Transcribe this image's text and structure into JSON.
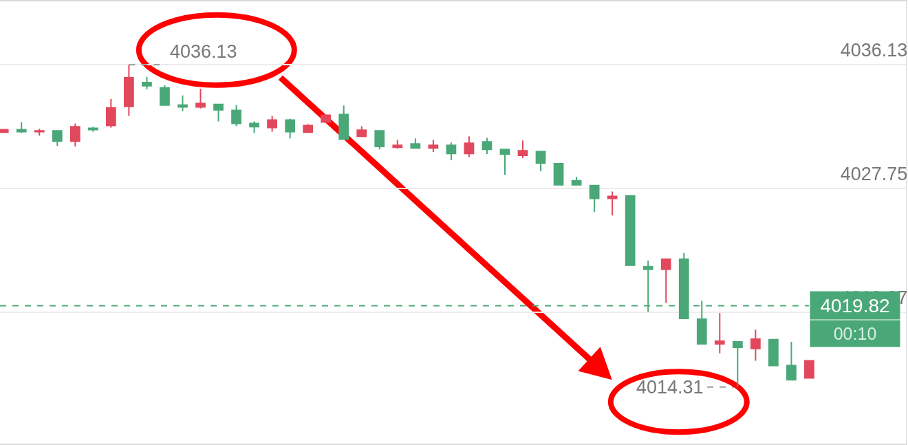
{
  "chart_data": {
    "type": "candlestick",
    "categories": [
      null,
      null,
      null,
      null,
      null,
      null,
      null,
      null,
      null,
      null,
      null,
      null,
      null,
      null,
      null,
      null,
      null,
      null,
      null,
      null,
      null,
      null,
      null,
      null,
      null,
      null,
      null,
      null,
      null,
      null,
      null,
      null,
      null,
      null,
      null,
      null,
      null,
      null,
      null,
      null,
      null,
      null,
      null,
      null,
      null,
      null
    ],
    "ohlc": [
      [
        4031.56,
        4031.74,
        4031.56,
        4031.74
      ],
      [
        4031.74,
        4032.25,
        4031.51,
        4031.6
      ],
      [
        4031.6,
        4031.79,
        4031.33,
        4031.65
      ],
      [
        4031.65,
        4031.65,
        4030.63,
        4030.96
      ],
      [
        4030.96,
        4032.16,
        4030.59,
        4031.93
      ],
      [
        4031.83,
        4031.93,
        4031.6,
        4031.74
      ],
      [
        4032.02,
        4033.82,
        4031.88,
        4033.22
      ],
      [
        4033.31,
        4036.13,
        4032.67,
        4035.25
      ],
      [
        4034.93,
        4035.3,
        4034.47,
        4034.7
      ],
      [
        4034.56,
        4034.74,
        4033.4,
        4033.4
      ],
      [
        4033.4,
        4034.05,
        4032.99,
        4033.27
      ],
      [
        4033.27,
        4034.51,
        4033.17,
        4033.5
      ],
      [
        4033.45,
        4033.45,
        4032.3,
        4033.08
      ],
      [
        4033.04,
        4033.4,
        4031.97,
        4032.16
      ],
      [
        4032.16,
        4032.3,
        4031.51,
        4031.93
      ],
      [
        4031.88,
        4032.67,
        4031.6,
        4032.39
      ],
      [
        4032.39,
        4032.48,
        4031.14,
        4031.6
      ],
      [
        4031.56,
        4032.11,
        4031.56,
        4032.02
      ],
      [
        4032.25,
        4032.71,
        4032.25,
        4032.71
      ],
      [
        4032.76,
        4033.36,
        4031.1,
        4031.1
      ],
      [
        4031.28,
        4031.97,
        4031.24,
        4031.7
      ],
      [
        4031.65,
        4031.7,
        4030.4,
        4030.59
      ],
      [
        4030.54,
        4031.05,
        4030.45,
        4030.68
      ],
      [
        4030.77,
        4031.14,
        4030.49,
        4030.49
      ],
      [
        4030.49,
        4031.05,
        4030.22,
        4030.68
      ],
      [
        4030.68,
        4030.86,
        4029.66,
        4030.12
      ],
      [
        4030.12,
        4031.28,
        4029.89,
        4030.82
      ],
      [
        4030.91,
        4031.19,
        4030.08,
        4030.4
      ],
      [
        4030.4,
        4030.4,
        4028.69,
        4030.08
      ],
      [
        4029.99,
        4031.0,
        4029.8,
        4030.31
      ],
      [
        4030.26,
        4030.26,
        4028.92,
        4029.48
      ],
      [
        4029.43,
        4029.48,
        4028.0,
        4028.0
      ],
      [
        4028.28,
        4028.55,
        4027.95,
        4028.0
      ],
      [
        4027.95,
        4027.95,
        4026.15,
        4027.08
      ],
      [
        4027.08,
        4027.54,
        4025.93,
        4027.22
      ],
      [
        4027.26,
        4027.26,
        4022.55,
        4022.55
      ],
      [
        4022.46,
        4022.88,
        4019.41,
        4022.28
      ],
      [
        4022.28,
        4022.97,
        4020.01,
        4022.97
      ],
      [
        4022.97,
        4023.38,
        4018.95,
        4018.95
      ],
      [
        4018.91,
        4020.15,
        4017.23,
        4017.23
      ],
      [
        4017.23,
        4019.32,
        4016.59,
        4017.42
      ],
      [
        4017.37,
        4017.37,
        4014.31,
        4017.0
      ],
      [
        4016.92,
        4018.2,
        4016.09,
        4017.56
      ],
      [
        4017.52,
        4017.52,
        4015.77,
        4015.77
      ],
      [
        4015.77,
        4017.37,
        4014.8,
        4014.8
      ],
      [
        4014.93,
        4016.09,
        4014.93,
        4016.09
      ]
    ],
    "colors": [
      "#e2485c",
      "#4aa878",
      "#e2485c",
      "#4aa878",
      "#e2485c",
      "#4aa878",
      "#e2485c",
      "#e2485c",
      "#4aa878",
      "#4aa878",
      "#4aa878",
      "#e2485c",
      "#4aa878",
      "#4aa878",
      "#4aa878",
      "#e2485c",
      "#4aa878",
      "#e2485c",
      "#e2485c",
      "#4aa878",
      "#e2485c",
      "#4aa878",
      "#e2485c",
      "#4aa878",
      "#e2485c",
      "#4aa878",
      "#e2485c",
      "#4aa878",
      "#4aa878",
      "#e2485c",
      "#4aa878",
      "#4aa878",
      "#4aa878",
      "#4aa878",
      "#e2485c",
      "#4aa878",
      "#4aa878",
      "#e2485c",
      "#4aa878",
      "#4aa878",
      "#e2485c",
      "#4aa878",
      "#e2485c",
      "#4aa878",
      "#4aa878",
      "#e2485c"
    ],
    "ylim": [
      4010.48,
      4040.42
    ],
    "yticks": [
      4036.13,
      4027.75,
      4019.37
    ],
    "grid": "y",
    "tick_labels": "y",
    "legend": false,
    "ref_lines": [
      {
        "axis": "y",
        "value": 4019.82,
        "label": "4019.82",
        "color": "#4aa878",
        "line_style": "dashed"
      }
    ],
    "annotations": [
      "4036.13",
      "4014.31",
      "00:10"
    ]
  }
}
